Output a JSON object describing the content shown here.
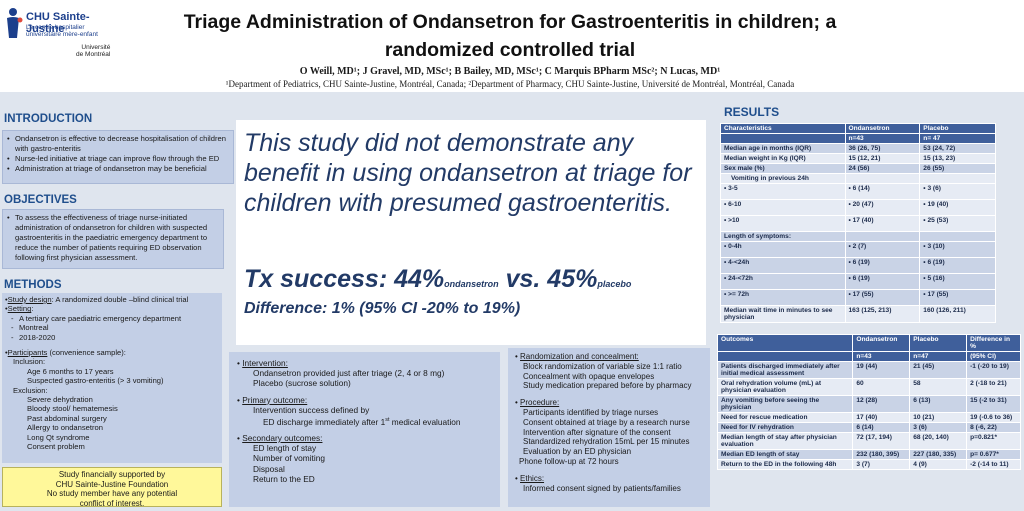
{
  "logo": {
    "name": "CHU Sainte-Justine",
    "sub1": "Le centre hospitalier",
    "sub2": "universitaire mère-enfant",
    "univ1": "Université",
    "univ2": "de Montréal"
  },
  "title": {
    "line1": "Triage Administration of Ondansetron for Gastroenteritis in children; a",
    "line2": "randomized controlled trial"
  },
  "authors": "O Weill, MD¹; J Gravel, MD, MSc¹; B Bailey, MD, MSc¹; C Marquis  BPharm MSc²; N Lucas, MD¹",
  "affiliations": "¹Department of Pediatrics, CHU Sainte-Justine, Montréal, Canada; ²Department of Pharmacy, CHU Sainte-Justine, Université de Montréal, Montréal, Canada",
  "introduction": {
    "heading": "INTRODUCTION",
    "items": [
      "Ondansetron is effective to decrease hospitalisation of children with gastro-enteritis",
      "Nurse-led initiative at triage can improve flow through the ED",
      "Administration at triage of ondansetron may be beneficial"
    ]
  },
  "objectives": {
    "heading": "OBJECTIVES",
    "text": "To assess the effectiveness of triage nurse-initiated administration of ondansetron for children with suspected gastroenteritis in the paediatric emergency department to reduce the number of patients requiring ED observation following first physician assessment."
  },
  "methods": {
    "heading": "METHODS",
    "design_label": "Study design",
    "design_text": ":   A randomized double –blind clinical trial",
    "setting_label": "Setting",
    "setting_items": [
      "A tertiary care paediatric emergency department",
      "Montreal",
      "2018-2020"
    ],
    "participants_label": "Participants",
    "participants_text": " (convenience sample):",
    "inclusion_label": "Inclusion:",
    "inclusion_items": [
      "Age 6 months to 17 years",
      "Suspected gastro-enteritis (> 3 vomiting)"
    ],
    "exclusion_label": "Exclusion:",
    "exclusion_items": [
      "Severe dehydration",
      "Bloody stool/ hematemesis",
      "Past abdominal surgery",
      "Allergy to ondansetron",
      "Long Qt syndrome",
      "Consent problem"
    ]
  },
  "support": {
    "line1": "Study financially supported by",
    "line2": "CHU Sainte-Justine Foundation",
    "line3": "No study member have any potential",
    "line4": "conflict of interest."
  },
  "highlight": {
    "text": "This study did not demonstrate any benefit in using ondansetron at triage for children with presumed gastroenteritis.",
    "tx_prefix": "Tx success: 44%",
    "tx_sub1": "ondansetron",
    "tx_vs": " vs. 45%",
    "tx_sub2": "placebo",
    "difference": "Difference: 1% (95% CI -20% to 19%)"
  },
  "intervention": {
    "heading": "Intervention:",
    "line1": "Ondansetron provided just after triage (2, 4 or 8 mg)",
    "line2": "Placebo (sucrose solution)",
    "primary_heading": "Primary outcome:",
    "primary1": "Intervention success defined by",
    "primary2": "ED discharge immediately after 1",
    "primary2_sup": "st",
    "primary2_end": " medical evaluation",
    "secondary_heading": "Secondary outcomes:",
    "secondary_items": [
      "ED length of stay",
      "Number of vomiting",
      "Disposal",
      "Return to the ED"
    ]
  },
  "randomization": {
    "heading": "Randomization and concealment:",
    "items": [
      "Block randomization of variable size 1:1 ratio",
      "Concealment with opaque envelopes",
      "Study medication prepared before by pharmacy"
    ],
    "procedure_heading": "Procedure:",
    "procedure_items": [
      "Participants identified by triage nurses",
      "Consent obtained at triage by a research nurse",
      "Intervention after signature of the consent",
      "Standardized rehydration 15mL per 15 minutes",
      "Evaluation by an ED physician"
    ],
    "followup": "Phone follow-up at 72 hours",
    "ethics_heading": "Ethics:",
    "ethics_text": "Informed consent signed by patients/families"
  },
  "results": {
    "heading": "RESULTS",
    "table1": {
      "headers": [
        "Characteristics",
        "Ondansetron",
        "Placebo"
      ],
      "subheaders": [
        "",
        "n=43",
        "n= 47"
      ],
      "rows": [
        [
          "Median age in months (IQR)",
          "36 (26, 75)",
          "53 (24, 72)"
        ],
        [
          "Median weight in Kg (IQR)",
          "15 (12, 21)",
          "15 (13, 23)"
        ],
        [
          "Sex male (%)",
          "24 (56)",
          "26 (55)"
        ]
      ],
      "vomit_label": "Vomiting in previous 24h",
      "vomit_rows": [
        [
          "3-5",
          "6 (14)",
          "3 (6)"
        ],
        [
          "6-10",
          "20 (47)",
          "19 (40)"
        ],
        [
          ">10",
          "17 (40)",
          "25 (53)"
        ]
      ],
      "length_label": "Length of symptoms:",
      "length_rows": [
        [
          "0-4h",
          "2 (7)",
          "3 (10)"
        ],
        [
          "4-<24h",
          "6 (19)",
          "6 (19)"
        ],
        [
          "24-<72h",
          "6 (19)",
          "5 (16)"
        ],
        [
          ">= 72h",
          "17 (55)",
          "17 (55)"
        ]
      ],
      "wait_row": [
        "Median wait time in minutes to see physician",
        "163 (125, 213)",
        "160 (126, 211)"
      ]
    },
    "table2": {
      "headers": [
        "Outcomes",
        "Ondansetron",
        "Placebo",
        "Difference in %"
      ],
      "subheaders": [
        "",
        "n=43",
        "n=47",
        "(95% CI)"
      ],
      "rows": [
        [
          "Patients discharged immediately after initial medical assessment",
          "19 (44)",
          "21 (45)",
          "-1 (-20 to 19)"
        ],
        [
          "Oral rehydration volume (mL) at physician evaluation",
          "60",
          "58",
          "2 (-18 to 21)"
        ],
        [
          "Any vomiting before seeing the physician",
          "12 (28)",
          "6 (13)",
          "15 (-2 to 31)"
        ],
        [
          "Need for rescue medication",
          "17 (40)",
          "10 (21)",
          "19 (-0.6 to 36)"
        ],
        [
          "Need for IV rehydration",
          "6 (14)",
          "3 (6)",
          "8 (-6, 22)"
        ],
        [
          "Median length of stay after physician evaluation",
          "72 (17, 194)",
          "68 (20, 140)",
          "p=0.821*"
        ],
        [
          "Median ED length of stay",
          "232 (180, 395)",
          "227 (180, 335)",
          "p=  0.677*"
        ],
        [
          "Return to the ED in the following 48h",
          "3 (7)",
          "4 (9)",
          "-2 (-14 to 11)"
        ]
      ]
    }
  }
}
